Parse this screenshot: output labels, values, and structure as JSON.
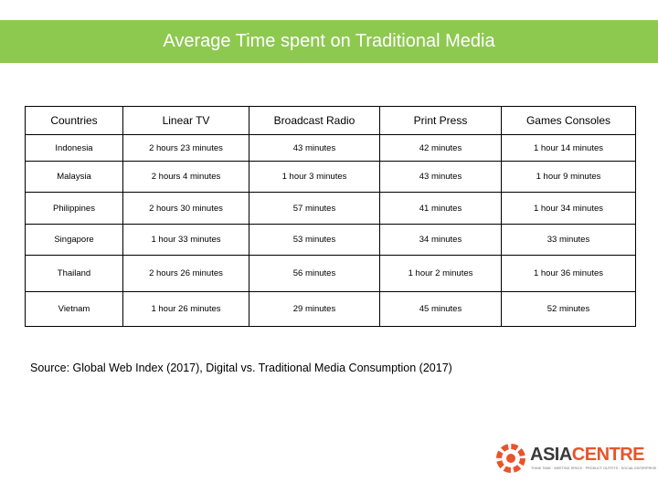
{
  "title": "Average Time spent on Traditional Media",
  "colors": {
    "title_bar": "#8dc94f",
    "brand_orange": "#e8542b",
    "brand_dark": "#3b3b3b"
  },
  "table": {
    "headers": [
      "Countries",
      "Linear TV",
      "Broadcast Radio",
      "Print Press",
      "Games Consoles"
    ],
    "rows": [
      [
        "Indonesia",
        "2 hours 23 minutes",
        "43 minutes",
        "42 minutes",
        "1 hour 14 minutes"
      ],
      [
        "Malaysia",
        "2 hours 4 minutes",
        "1 hour 3 minutes",
        "43 minutes",
        "1 hour 9 minutes"
      ],
      [
        "Philippines",
        "2 hours 30 minutes",
        "57 minutes",
        "41 minutes",
        "1 hour 34 minutes"
      ],
      [
        "Singapore",
        "1 hour 33 minutes",
        "53 minutes",
        "34 minutes",
        "33 minutes"
      ],
      [
        "Thailand",
        "2 hours 26 minutes",
        "56 minutes",
        "1 hour 2 minutes",
        "1 hour 36 minutes"
      ],
      [
        "Vietnam",
        "1 hour 26 minutes",
        "29 minutes",
        "45 minutes",
        "52 minutes"
      ]
    ]
  },
  "source": "Source: Global Web Index (2017), Digital vs. Traditional Media Consumption (2017)",
  "logo": {
    "word_part1": "ASIA",
    "word_part2": "CENTRE",
    "tagline": "THINK TANK · MEETING SPACE · PRODUCT OUTFITS · SOCIAL ENTERPRISE",
    "icon": "asia-centre-logo-icon"
  }
}
